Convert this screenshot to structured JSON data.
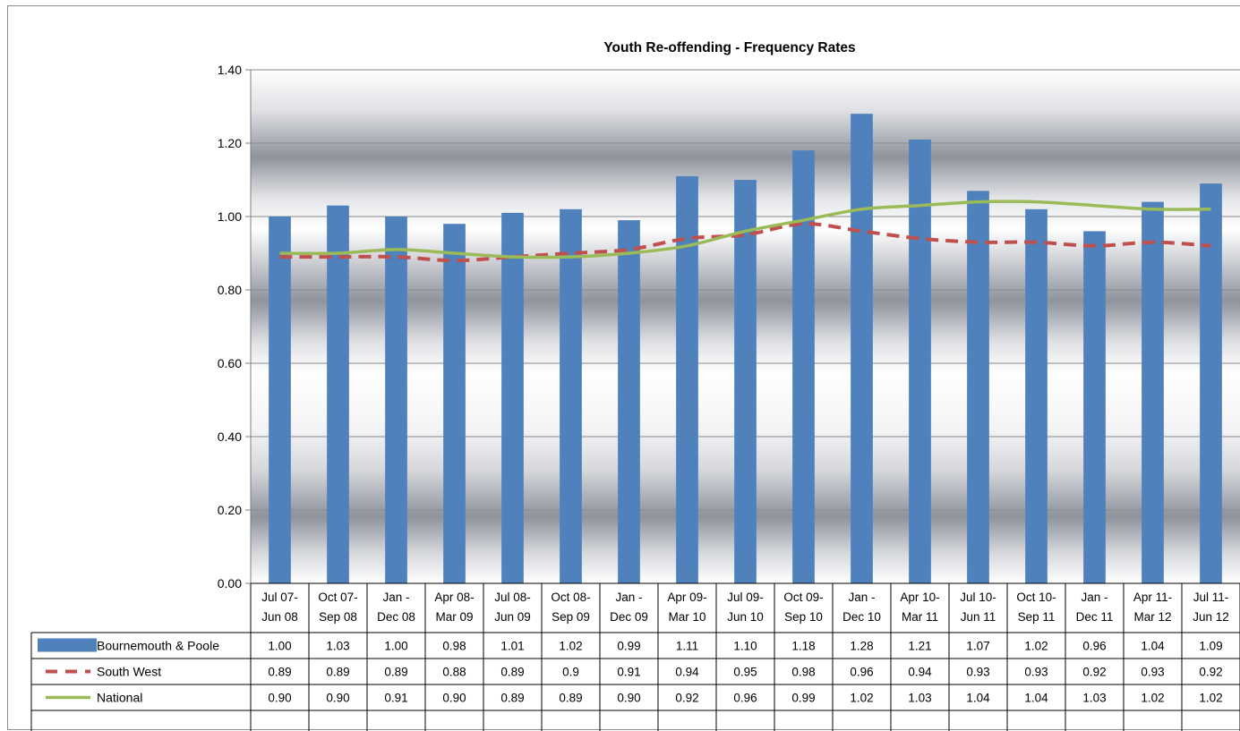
{
  "chart_data": {
    "type": "bar",
    "title": "Youth Re-offending - Frequency Rates",
    "categories": [
      [
        "Jul 07-",
        "Jun 08"
      ],
      [
        "Oct 07-",
        "Sep 08"
      ],
      [
        "Jan -",
        "Dec 08"
      ],
      [
        "Apr 08-",
        "Mar 09"
      ],
      [
        "Jul 08-",
        "Jun 09"
      ],
      [
        "Oct 08-",
        "Sep 09"
      ],
      [
        "Jan -",
        "Dec 09"
      ],
      [
        "Apr 09-",
        "Mar 10"
      ],
      [
        "Jul 09-",
        "Jun 10"
      ],
      [
        "Oct 09-",
        "Sep 10"
      ],
      [
        "Jan -",
        "Dec 10"
      ],
      [
        "Apr 10-",
        "Mar 11"
      ],
      [
        "Jul 10-",
        "Jun 11"
      ],
      [
        "Oct 10-",
        "Sep 11"
      ],
      [
        "Jan -",
        "Dec 11"
      ],
      [
        "Apr 11-",
        "Mar 12"
      ],
      [
        "Jul 11-",
        "Jun 12"
      ]
    ],
    "series": [
      {
        "name": "Bournemouth & Poole",
        "style": "bar",
        "color": "#4f81bd",
        "values": [
          1.0,
          1.03,
          1.0,
          0.98,
          1.01,
          1.02,
          0.99,
          1.11,
          1.1,
          1.18,
          1.28,
          1.21,
          1.07,
          1.02,
          0.96,
          1.04,
          1.09
        ],
        "labels": [
          "1.00",
          "1.03",
          "1.00",
          "0.98",
          "1.01",
          "1.02",
          "0.99",
          "1.11",
          "1.10",
          "1.18",
          "1.28",
          "1.21",
          "1.07",
          "1.02",
          "0.96",
          "1.04",
          "1.09"
        ]
      },
      {
        "name": "South West",
        "style": "dashed-line",
        "color": "#c0504d",
        "values": [
          0.89,
          0.89,
          0.89,
          0.88,
          0.89,
          0.9,
          0.91,
          0.94,
          0.95,
          0.98,
          0.96,
          0.94,
          0.93,
          0.93,
          0.92,
          0.93,
          0.92
        ],
        "labels": [
          "0.89",
          "0.89",
          "0.89",
          "0.88",
          "0.89",
          "0.9",
          "0.91",
          "0.94",
          "0.95",
          "0.98",
          "0.96",
          "0.94",
          "0.93",
          "0.93",
          "0.92",
          "0.93",
          "0.92"
        ]
      },
      {
        "name": "National",
        "style": "line",
        "color": "#9bbb59",
        "values": [
          0.9,
          0.9,
          0.91,
          0.9,
          0.89,
          0.89,
          0.9,
          0.92,
          0.96,
          0.99,
          1.02,
          1.03,
          1.04,
          1.04,
          1.03,
          1.02,
          1.02
        ],
        "labels": [
          "0.90",
          "0.90",
          "0.91",
          "0.90",
          "0.89",
          "0.89",
          "0.90",
          "0.92",
          "0.96",
          "0.99",
          "1.02",
          "1.03",
          "1.04",
          "1.04",
          "1.03",
          "1.02",
          "1.02"
        ]
      }
    ],
    "ylim": [
      0,
      1.4
    ],
    "yticks": [
      "0.00",
      "0.20",
      "0.40",
      "0.60",
      "0.80",
      "1.00",
      "1.20",
      "1.40"
    ],
    "grid": true,
    "legend": "data-table"
  }
}
